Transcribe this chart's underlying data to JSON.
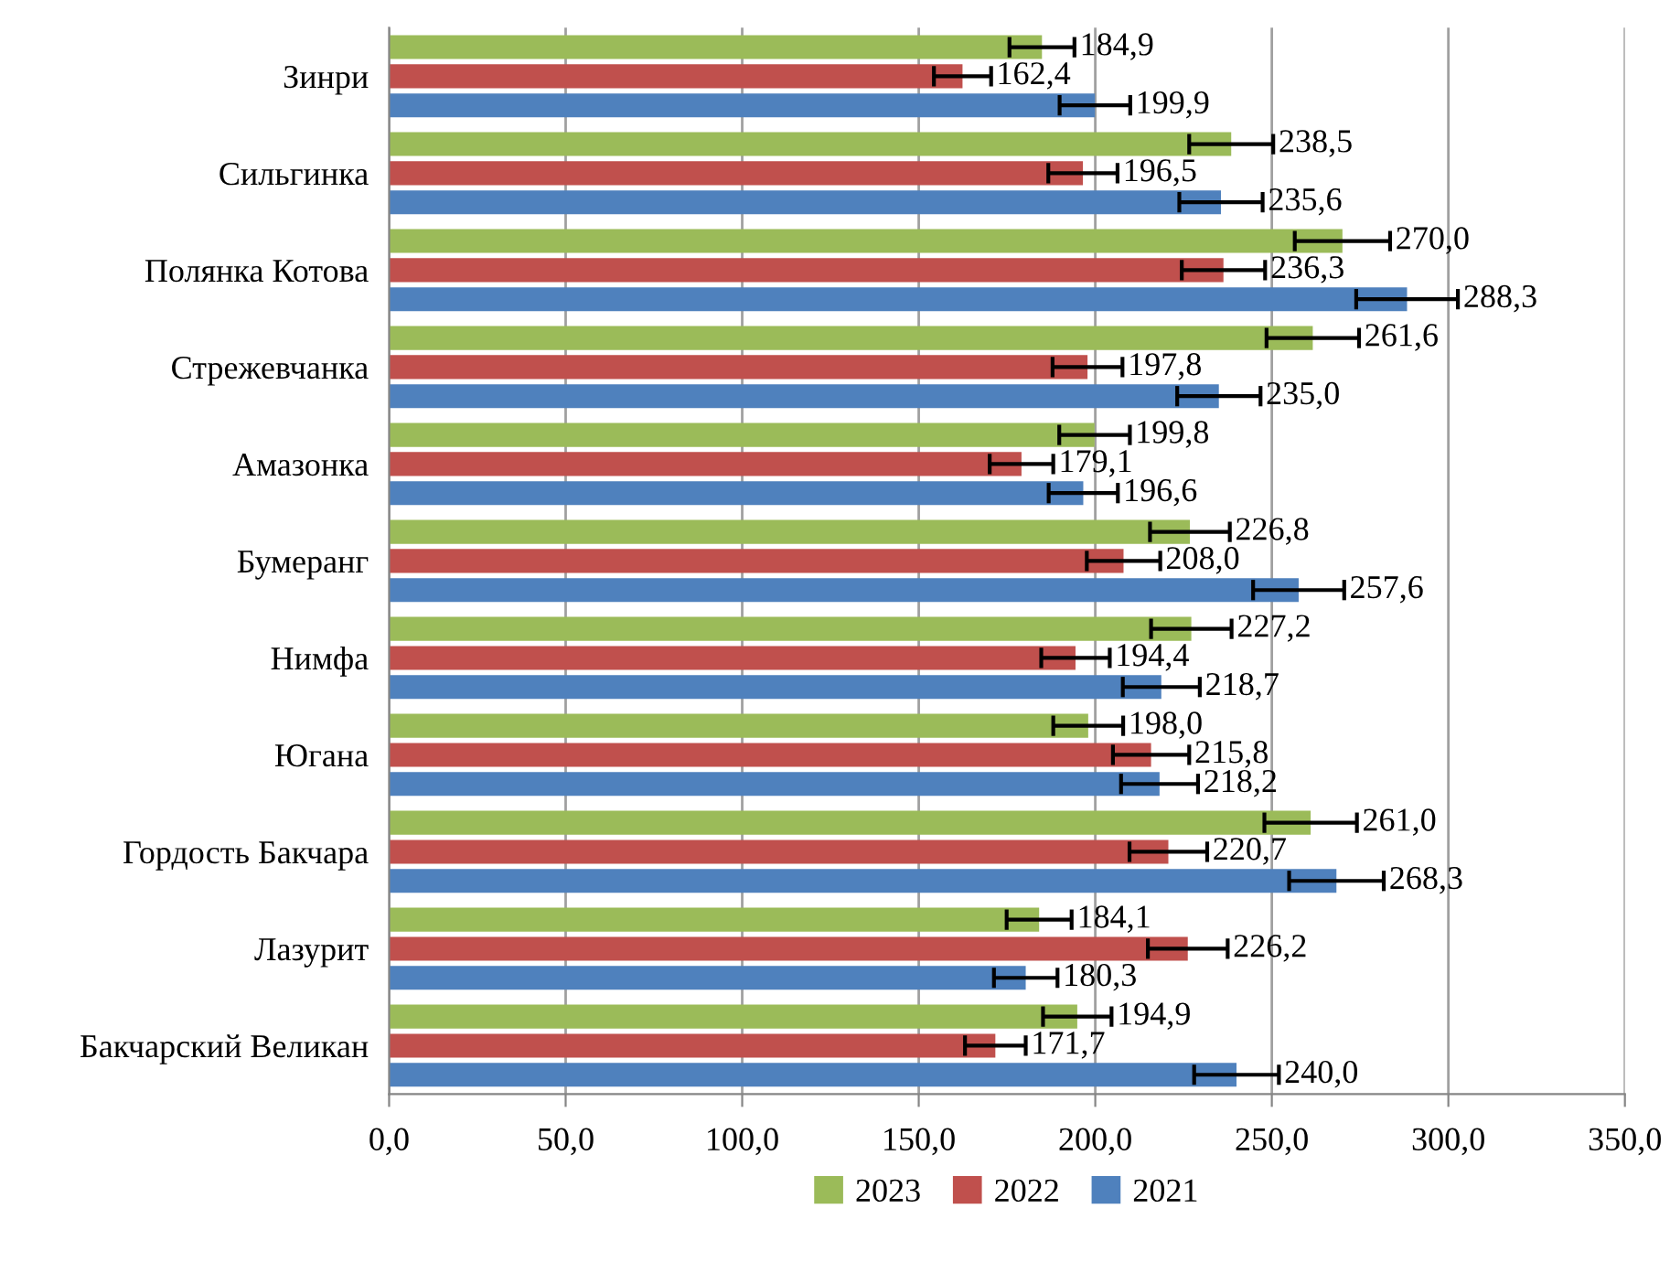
{
  "chart_data": {
    "type": "bar",
    "orientation": "horizontal",
    "categories": [
      "Зинри",
      "Сильгинка",
      "Полянка Котова",
      "Стрежевчанка",
      "Амазонка",
      "Бумеранг",
      "Нимфа",
      "Югана",
      "Гордость Бакчара",
      "Лазурит",
      "Бакчарский Великан"
    ],
    "series": [
      {
        "name": "2023",
        "color": "#9bbb59",
        "values": [
          184.9,
          238.5,
          270.0,
          261.6,
          199.8,
          226.8,
          227.2,
          198.0,
          261.0,
          184.1,
          194.9
        ],
        "errors": [
          9.2,
          11.9,
          13.5,
          13.1,
          10.0,
          11.3,
          11.4,
          9.9,
          13.1,
          9.2,
          9.7
        ],
        "value_labels": [
          "184,9",
          "238,5",
          "270,0",
          "261,6",
          "199,8",
          "226,8",
          "227,2",
          "198,0",
          "261,0",
          "184,1",
          "194,9"
        ]
      },
      {
        "name": "2022",
        "color": "#c0504d",
        "values": [
          162.4,
          196.5,
          236.3,
          197.8,
          179.1,
          208.0,
          194.4,
          215.8,
          220.7,
          226.2,
          171.7
        ],
        "errors": [
          8.1,
          9.8,
          11.8,
          9.9,
          9.0,
          10.4,
          9.7,
          10.8,
          11.0,
          11.3,
          8.6
        ],
        "value_labels": [
          "162,4",
          "196,5",
          "236,3",
          "197,8",
          "179,1",
          "208,0",
          "194,4",
          "215,8",
          "220,7",
          "226,2",
          "171,7"
        ]
      },
      {
        "name": "2021",
        "color": "#4f81bd",
        "values": [
          199.9,
          235.6,
          288.3,
          235.0,
          196.6,
          257.6,
          218.7,
          218.2,
          268.3,
          180.3,
          240.0
        ],
        "errors": [
          10.0,
          11.8,
          14.4,
          11.8,
          9.8,
          12.9,
          10.9,
          10.9,
          13.4,
          9.0,
          12.0
        ],
        "value_labels": [
          "199,9",
          "235,6",
          "288,3",
          "235,0",
          "196,6",
          "257,6",
          "218,7",
          "218,2",
          "268,3",
          "180,3",
          "240,0"
        ]
      }
    ],
    "xlim": [
      0,
      350
    ],
    "xticks": [
      {
        "value": 0,
        "label": "0,0"
      },
      {
        "value": 50,
        "label": "50,0"
      },
      {
        "value": 100,
        "label": "100,0"
      },
      {
        "value": 150,
        "label": "150,0"
      },
      {
        "value": 200,
        "label": "200,0"
      },
      {
        "value": 250,
        "label": "250,0"
      },
      {
        "value": 300,
        "label": "300,0"
      },
      {
        "value": 350,
        "label": "350,0"
      }
    ],
    "grid": "x",
    "legend": "bottom"
  }
}
